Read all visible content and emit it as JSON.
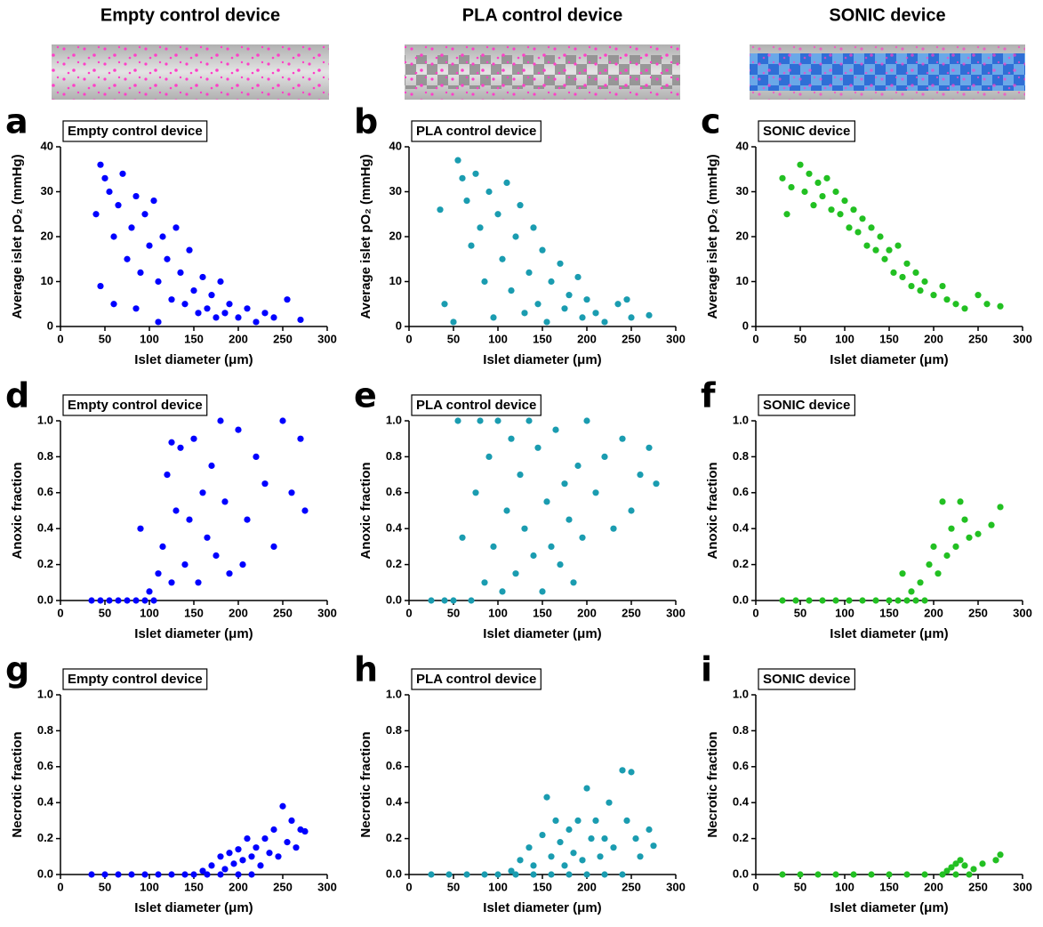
{
  "headers": [
    "Empty control device",
    "PLA control device",
    "SONIC device"
  ],
  "chart_data": [
    {
      "type": "scatter",
      "panel": "a",
      "title": "Empty control device",
      "x_label": "Islet diameter (μm)",
      "y_label": "Average islet pO₂ (mmHg)",
      "color": "#0000ff",
      "xlim": [
        0,
        300
      ],
      "ylim": [
        0,
        40
      ],
      "xticks": [
        0,
        50,
        100,
        150,
        200,
        250,
        300
      ],
      "yticks": [
        0,
        10,
        20,
        30,
        40
      ],
      "x": [
        40,
        45,
        50,
        55,
        60,
        65,
        70,
        75,
        80,
        85,
        90,
        95,
        100,
        105,
        110,
        115,
        120,
        125,
        130,
        135,
        140,
        145,
        150,
        155,
        160,
        165,
        170,
        175,
        180,
        185,
        190,
        200,
        210,
        220,
        230,
        240,
        255,
        270,
        45,
        60,
        85,
        110
      ],
      "values": [
        25,
        36,
        33,
        30,
        20,
        27,
        34,
        15,
        22,
        29,
        12,
        25,
        18,
        28,
        10,
        20,
        15,
        6,
        22,
        12,
        5,
        17,
        8,
        3,
        11,
        4,
        7,
        2,
        10,
        3,
        5,
        2,
        4,
        1,
        3,
        2,
        6,
        1.5,
        9,
        5,
        4,
        1
      ]
    },
    {
      "type": "scatter",
      "panel": "b",
      "title": "PLA control device",
      "x_label": "Islet diameter (μm)",
      "y_label": "Average islet pO₂ (mmHg)",
      "color": "#1a9cb0",
      "xlim": [
        0,
        300
      ],
      "ylim": [
        0,
        40
      ],
      "xticks": [
        0,
        50,
        100,
        150,
        200,
        250,
        300
      ],
      "yticks": [
        0,
        10,
        20,
        30,
        40
      ],
      "x": [
        35,
        40,
        50,
        55,
        60,
        65,
        70,
        75,
        80,
        85,
        90,
        95,
        100,
        105,
        110,
        115,
        120,
        125,
        130,
        135,
        140,
        145,
        150,
        155,
        160,
        170,
        175,
        180,
        190,
        195,
        200,
        210,
        220,
        235,
        245,
        250,
        270
      ],
      "values": [
        26,
        5,
        1,
        37,
        33,
        28,
        18,
        34,
        22,
        10,
        30,
        2,
        25,
        15,
        32,
        8,
        20,
        27,
        3,
        12,
        22,
        5,
        17,
        1,
        10,
        14,
        4,
        7,
        11,
        2,
        6,
        3,
        1,
        5,
        6,
        2,
        2.5
      ]
    },
    {
      "type": "scatter",
      "panel": "c",
      "title": "SONIC device",
      "x_label": "Islet diameter (μm)",
      "y_label": "Average islet pO₂ (mmHg)",
      "color": "#22c022",
      "xlim": [
        0,
        300
      ],
      "ylim": [
        0,
        40
      ],
      "xticks": [
        0,
        50,
        100,
        150,
        200,
        250,
        300
      ],
      "yticks": [
        0,
        10,
        20,
        30,
        40
      ],
      "x": [
        30,
        40,
        50,
        55,
        60,
        65,
        70,
        75,
        80,
        85,
        90,
        95,
        100,
        105,
        110,
        115,
        120,
        125,
        130,
        135,
        140,
        145,
        150,
        155,
        160,
        165,
        170,
        175,
        180,
        185,
        190,
        200,
        210,
        215,
        225,
        235,
        250,
        260,
        275,
        35
      ],
      "values": [
        33,
        31,
        36,
        30,
        34,
        27,
        32,
        29,
        33,
        26,
        30,
        25,
        28,
        22,
        26,
        21,
        24,
        18,
        22,
        17,
        20,
        15,
        17,
        12,
        18,
        11,
        14,
        9,
        12,
        8,
        10,
        7,
        9,
        6,
        5,
        4,
        7,
        5,
        4.5,
        25
      ]
    },
    {
      "type": "scatter",
      "panel": "d",
      "title": "Empty control device",
      "x_label": "Islet diameter (μm)",
      "y_label": "Anoxic fraction",
      "color": "#0000ff",
      "xlim": [
        0,
        300
      ],
      "ylim": [
        0,
        1
      ],
      "xticks": [
        0,
        50,
        100,
        150,
        200,
        250,
        300
      ],
      "yticks": [
        {
          "value": 0,
          "label": "0.0"
        },
        0.2,
        0.4,
        0.6,
        0.8,
        {
          "value": 1,
          "label": "1.0"
        }
      ],
      "x": [
        35,
        45,
        55,
        65,
        75,
        85,
        90,
        95,
        100,
        105,
        110,
        115,
        120,
        125,
        130,
        135,
        140,
        145,
        150,
        155,
        160,
        165,
        170,
        175,
        180,
        185,
        190,
        200,
        210,
        220,
        230,
        240,
        250,
        260,
        270,
        275,
        125,
        205
      ],
      "values": [
        0,
        0,
        0,
        0,
        0,
        0,
        0.4,
        0,
        0.05,
        0,
        0.15,
        0.3,
        0.7,
        0.1,
        0.5,
        0.85,
        0.2,
        0.45,
        0.9,
        0.1,
        0.6,
        0.35,
        0.75,
        0.25,
        1,
        0.55,
        0.15,
        0.95,
        0.45,
        0.8,
        0.65,
        0.3,
        1,
        0.6,
        0.9,
        0.5,
        0.88,
        0.2
      ]
    },
    {
      "type": "scatter",
      "panel": "e",
      "title": "PLA control device",
      "x_label": "Islet diameter (μm)",
      "y_label": "Anoxic fraction",
      "color": "#1a9cb0",
      "xlim": [
        0,
        300
      ],
      "ylim": [
        0,
        1
      ],
      "xticks": [
        0,
        50,
        100,
        150,
        200,
        250,
        300
      ],
      "yticks": [
        {
          "value": 0,
          "label": "0.0"
        },
        0.2,
        0.4,
        0.6,
        0.8,
        {
          "value": 1,
          "label": "1.0"
        }
      ],
      "x": [
        25,
        40,
        50,
        55,
        60,
        70,
        75,
        80,
        85,
        90,
        95,
        100,
        105,
        110,
        115,
        120,
        125,
        130,
        135,
        140,
        145,
        150,
        155,
        160,
        165,
        170,
        175,
        180,
        185,
        190,
        195,
        200,
        210,
        220,
        230,
        240,
        250,
        260,
        270,
        278
      ],
      "values": [
        0,
        0,
        0,
        1,
        0.35,
        0,
        0.6,
        1,
        0.1,
        0.8,
        0.3,
        1,
        0.05,
        0.5,
        0.9,
        0.15,
        0.7,
        0.4,
        1,
        0.25,
        0.85,
        0.05,
        0.55,
        0.3,
        0.95,
        0.2,
        0.65,
        0.45,
        0.1,
        0.75,
        0.35,
        1,
        0.6,
        0.8,
        0.4,
        0.9,
        0.5,
        0.7,
        0.85,
        0.65
      ]
    },
    {
      "type": "scatter",
      "panel": "f",
      "title": "SONIC device",
      "x_label": "Islet diameter (μm)",
      "y_label": "Anoxic fraction",
      "color": "#22c022",
      "xlim": [
        0,
        300
      ],
      "ylim": [
        0,
        1
      ],
      "xticks": [
        0,
        50,
        100,
        150,
        200,
        250,
        300
      ],
      "yticks": [
        {
          "value": 0,
          "label": "0.0"
        },
        0.2,
        0.4,
        0.6,
        0.8,
        {
          "value": 1,
          "label": "1.0"
        }
      ],
      "x": [
        30,
        45,
        60,
        75,
        90,
        105,
        120,
        135,
        150,
        160,
        170,
        180,
        190,
        165,
        175,
        185,
        195,
        200,
        205,
        210,
        215,
        220,
        225,
        230,
        235,
        240,
        250,
        265,
        275
      ],
      "values": [
        0,
        0,
        0,
        0,
        0,
        0,
        0,
        0,
        0,
        0,
        0,
        0,
        0,
        0.15,
        0.05,
        0.1,
        0.2,
        0.3,
        0.15,
        0.55,
        0.25,
        0.4,
        0.3,
        0.55,
        0.45,
        0.35,
        0.37,
        0.42,
        0.52
      ]
    },
    {
      "type": "scatter",
      "panel": "g",
      "title": "Empty control device",
      "x_label": "Islet diameter (μm)",
      "y_label": "Necrotic fraction",
      "color": "#0000ff",
      "xlim": [
        0,
        300
      ],
      "ylim": [
        0,
        1
      ],
      "xticks": [
        0,
        50,
        100,
        150,
        200,
        250,
        300
      ],
      "yticks": [
        {
          "value": 0,
          "label": "0.0"
        },
        0.2,
        0.4,
        0.6,
        0.8,
        {
          "value": 1,
          "label": "1.0"
        }
      ],
      "x": [
        35,
        50,
        65,
        80,
        95,
        110,
        125,
        140,
        150,
        165,
        180,
        200,
        215,
        160,
        170,
        180,
        185,
        190,
        195,
        200,
        205,
        210,
        215,
        220,
        225,
        230,
        235,
        240,
        245,
        250,
        255,
        260,
        265,
        270,
        275
      ],
      "values": [
        0,
        0,
        0,
        0,
        0,
        0,
        0,
        0,
        0,
        0,
        0,
        0,
        0,
        0.02,
        0.05,
        0.1,
        0.03,
        0.12,
        0.06,
        0.14,
        0.08,
        0.2,
        0.1,
        0.15,
        0.05,
        0.2,
        0.12,
        0.25,
        0.1,
        0.38,
        0.18,
        0.3,
        0.15,
        0.25,
        0.24
      ]
    },
    {
      "type": "scatter",
      "panel": "h",
      "title": "PLA control device",
      "x_label": "Islet diameter (μm)",
      "y_label": "Necrotic fraction",
      "color": "#1a9cb0",
      "xlim": [
        0,
        300
      ],
      "ylim": [
        0,
        1
      ],
      "xticks": [
        0,
        50,
        100,
        150,
        200,
        250,
        300
      ],
      "yticks": [
        {
          "value": 0,
          "label": "0.0"
        },
        0.2,
        0.4,
        0.6,
        0.8,
        {
          "value": 1,
          "label": "1.0"
        }
      ],
      "x": [
        25,
        45,
        65,
        85,
        100,
        120,
        140,
        160,
        180,
        200,
        220,
        240,
        115,
        125,
        135,
        140,
        150,
        155,
        160,
        165,
        170,
        175,
        180,
        185,
        190,
        195,
        200,
        205,
        210,
        215,
        220,
        225,
        230,
        240,
        245,
        250,
        255,
        260,
        270,
        275
      ],
      "values": [
        0,
        0,
        0,
        0,
        0,
        0,
        0,
        0,
        0,
        0,
        0,
        0,
        0.02,
        0.08,
        0.15,
        0.05,
        0.22,
        0.43,
        0.1,
        0.3,
        0.18,
        0.05,
        0.25,
        0.12,
        0.3,
        0.08,
        0.48,
        0.2,
        0.3,
        0.1,
        0.2,
        0.4,
        0.15,
        0.58,
        0.3,
        0.57,
        0.2,
        0.1,
        0.25,
        0.16
      ]
    },
    {
      "type": "scatter",
      "panel": "i",
      "title": "SONIC device",
      "x_label": "Islet diameter (μm)",
      "y_label": "Necrotic fraction",
      "color": "#22c022",
      "xlim": [
        0,
        300
      ],
      "ylim": [
        0,
        1
      ],
      "xticks": [
        0,
        50,
        100,
        150,
        200,
        250,
        300
      ],
      "yticks": [
        {
          "value": 0,
          "label": "0.0"
        },
        0.2,
        0.4,
        0.6,
        0.8,
        {
          "value": 1,
          "label": "1.0"
        }
      ],
      "x": [
        30,
        50,
        70,
        90,
        110,
        130,
        150,
        170,
        190,
        210,
        225,
        240,
        215,
        220,
        225,
        230,
        235,
        245,
        255,
        270,
        275
      ],
      "values": [
        0,
        0,
        0,
        0,
        0,
        0,
        0,
        0,
        0,
        0,
        0,
        0,
        0.02,
        0.04,
        0.06,
        0.08,
        0.05,
        0.03,
        0.06,
        0.08,
        0.11
      ]
    }
  ]
}
